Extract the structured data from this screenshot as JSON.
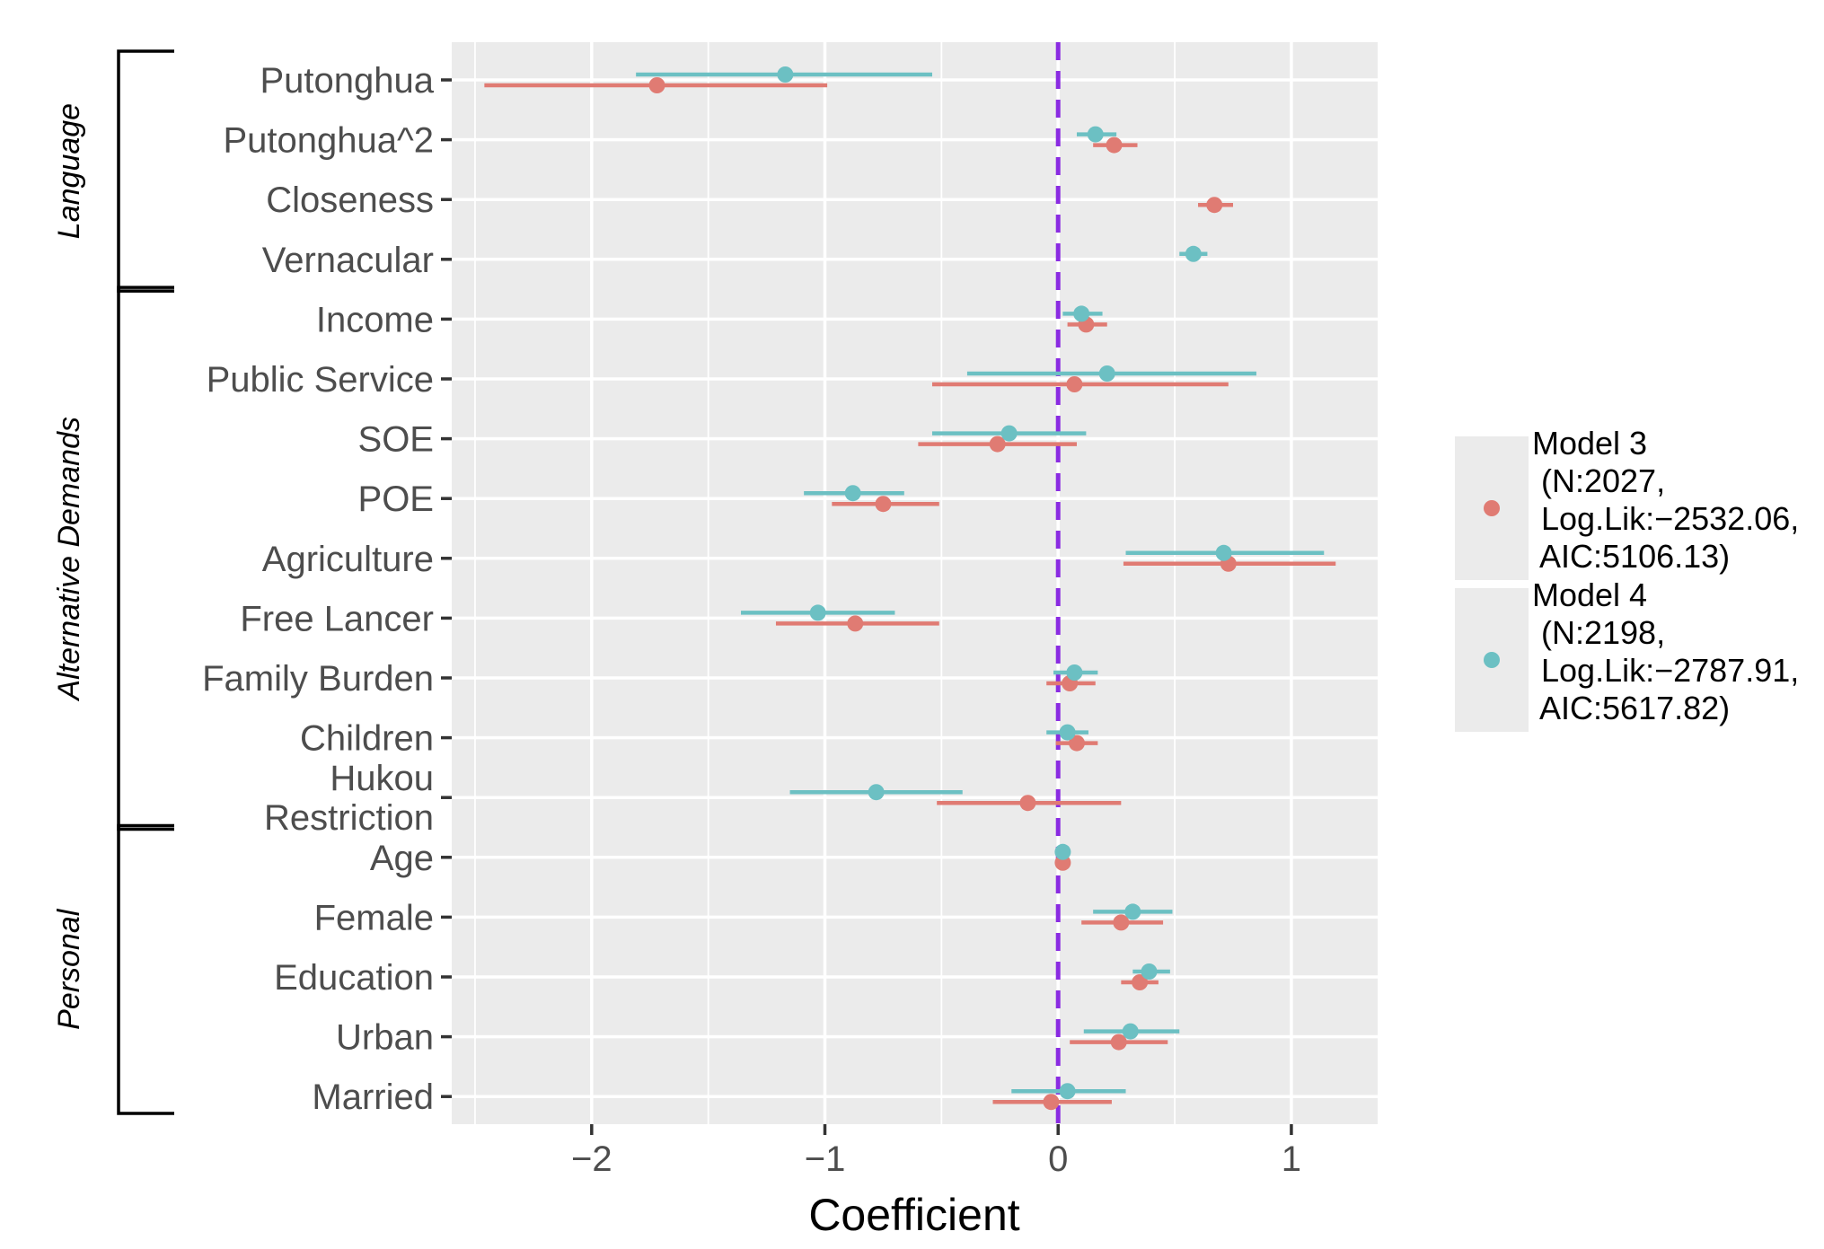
{
  "chart_data": {
    "type": "coefficient-plot",
    "xlabel": "Coefficient",
    "xlim": [
      -2.6,
      1.37
    ],
    "x_ticks": [
      -2,
      -1,
      0,
      1
    ],
    "x_tick_labels": [
      "−2",
      "−1",
      "0",
      "1"
    ],
    "reference_line": {
      "x": 0,
      "color": "#8a2be2",
      "style": "dashed"
    },
    "grid": true,
    "legend_position": "right",
    "categories": [
      "Putonghua",
      "Putonghua^2",
      "Closeness",
      "Vernacular",
      "Income",
      "Public Service",
      "SOE",
      "POE",
      "Agriculture",
      "Free Lancer",
      "Family Burden",
      "Children",
      "Hukou Restriction",
      "Age",
      "Female",
      "Education",
      "Urban",
      "Married"
    ],
    "category_lines": [
      [
        "Putonghua"
      ],
      [
        "Putonghua^2"
      ],
      [
        "Closeness"
      ],
      [
        "Vernacular"
      ],
      [
        "Income"
      ],
      [
        "Public Service"
      ],
      [
        "SOE"
      ],
      [
        "POE"
      ],
      [
        "Agriculture"
      ],
      [
        "Free Lancer"
      ],
      [
        "Family Burden"
      ],
      [
        "Children"
      ],
      [
        "Hukou",
        "Restriction"
      ],
      [
        "Age"
      ],
      [
        "Female"
      ],
      [
        "Education"
      ],
      [
        "Urban"
      ],
      [
        "Married"
      ]
    ],
    "groups": [
      {
        "label": "Language",
        "from": 0,
        "to": 3
      },
      {
        "label": "Alternative Demands",
        "from": 4,
        "to": 12
      },
      {
        "label": "Personal",
        "from": 13,
        "to": 17
      }
    ],
    "series": [
      {
        "legend_lines": [
          "Model 3",
          " (N:2027,",
          " Log.Lik:−2532.06,",
          " AIC:5106.13)"
        ],
        "color": "#e07b73",
        "estimates": [
          -1.72,
          0.24,
          0.67,
          null,
          0.12,
          0.07,
          -0.26,
          -0.75,
          0.73,
          -0.87,
          0.05,
          0.08,
          -0.13,
          0.02,
          0.27,
          0.35,
          0.26,
          -0.03
        ],
        "ci_low": [
          -2.46,
          0.15,
          0.6,
          null,
          0.04,
          -0.54,
          -0.6,
          -0.97,
          0.28,
          -1.21,
          -0.05,
          -0.01,
          -0.52,
          0.01,
          0.1,
          0.27,
          0.05,
          -0.28
        ],
        "ci_high": [
          -0.99,
          0.34,
          0.75,
          null,
          0.21,
          0.73,
          0.08,
          -0.51,
          1.19,
          -0.51,
          0.16,
          0.17,
          0.27,
          0.03,
          0.45,
          0.43,
          0.47,
          0.23
        ]
      },
      {
        "legend_lines": [
          "Model 4",
          " (N:2198,",
          " Log.Lik:−2787.91,",
          " AIC:5617.82)"
        ],
        "color": "#6cc0c3",
        "estimates": [
          -1.17,
          0.16,
          null,
          0.58,
          0.1,
          0.21,
          -0.21,
          -0.88,
          0.71,
          -1.03,
          0.07,
          0.04,
          -0.78,
          0.02,
          0.32,
          0.39,
          0.31,
          0.04
        ],
        "ci_low": [
          -1.81,
          0.08,
          null,
          0.52,
          0.02,
          -0.39,
          -0.54,
          -1.09,
          0.29,
          -1.36,
          -0.02,
          -0.05,
          -1.15,
          0.01,
          0.15,
          0.32,
          0.11,
          -0.2
        ],
        "ci_high": [
          -0.54,
          0.25,
          null,
          0.64,
          0.19,
          0.85,
          0.12,
          -0.66,
          1.14,
          -0.7,
          0.17,
          0.13,
          -0.41,
          0.03,
          0.49,
          0.48,
          0.52,
          0.29
        ]
      }
    ]
  }
}
